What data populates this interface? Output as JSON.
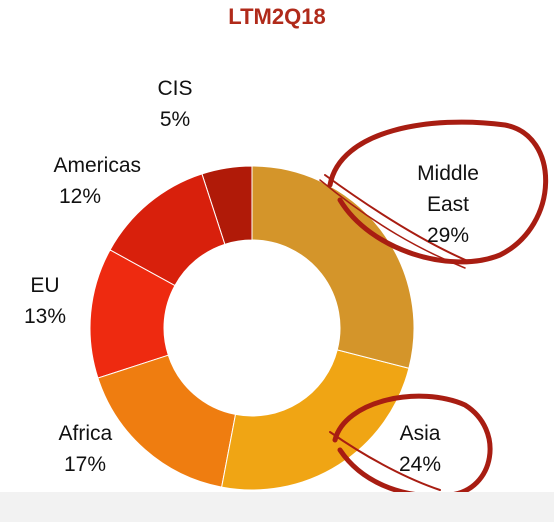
{
  "chart_data": {
    "type": "donut",
    "title": "LTM2Q18",
    "categories": [
      "Middle East",
      "Asia",
      "Africa",
      "EU",
      "Americas",
      "CIS"
    ],
    "values": [
      29,
      24,
      17,
      13,
      12,
      5
    ],
    "value_labels": [
      "29%",
      "24%",
      "17%",
      "13%",
      "12%",
      "5%"
    ],
    "colors": [
      "#d4952a",
      "#f0a514",
      "#ef7d10",
      "#ee2a10",
      "#d8200c",
      "#b01a08"
    ]
  }
}
